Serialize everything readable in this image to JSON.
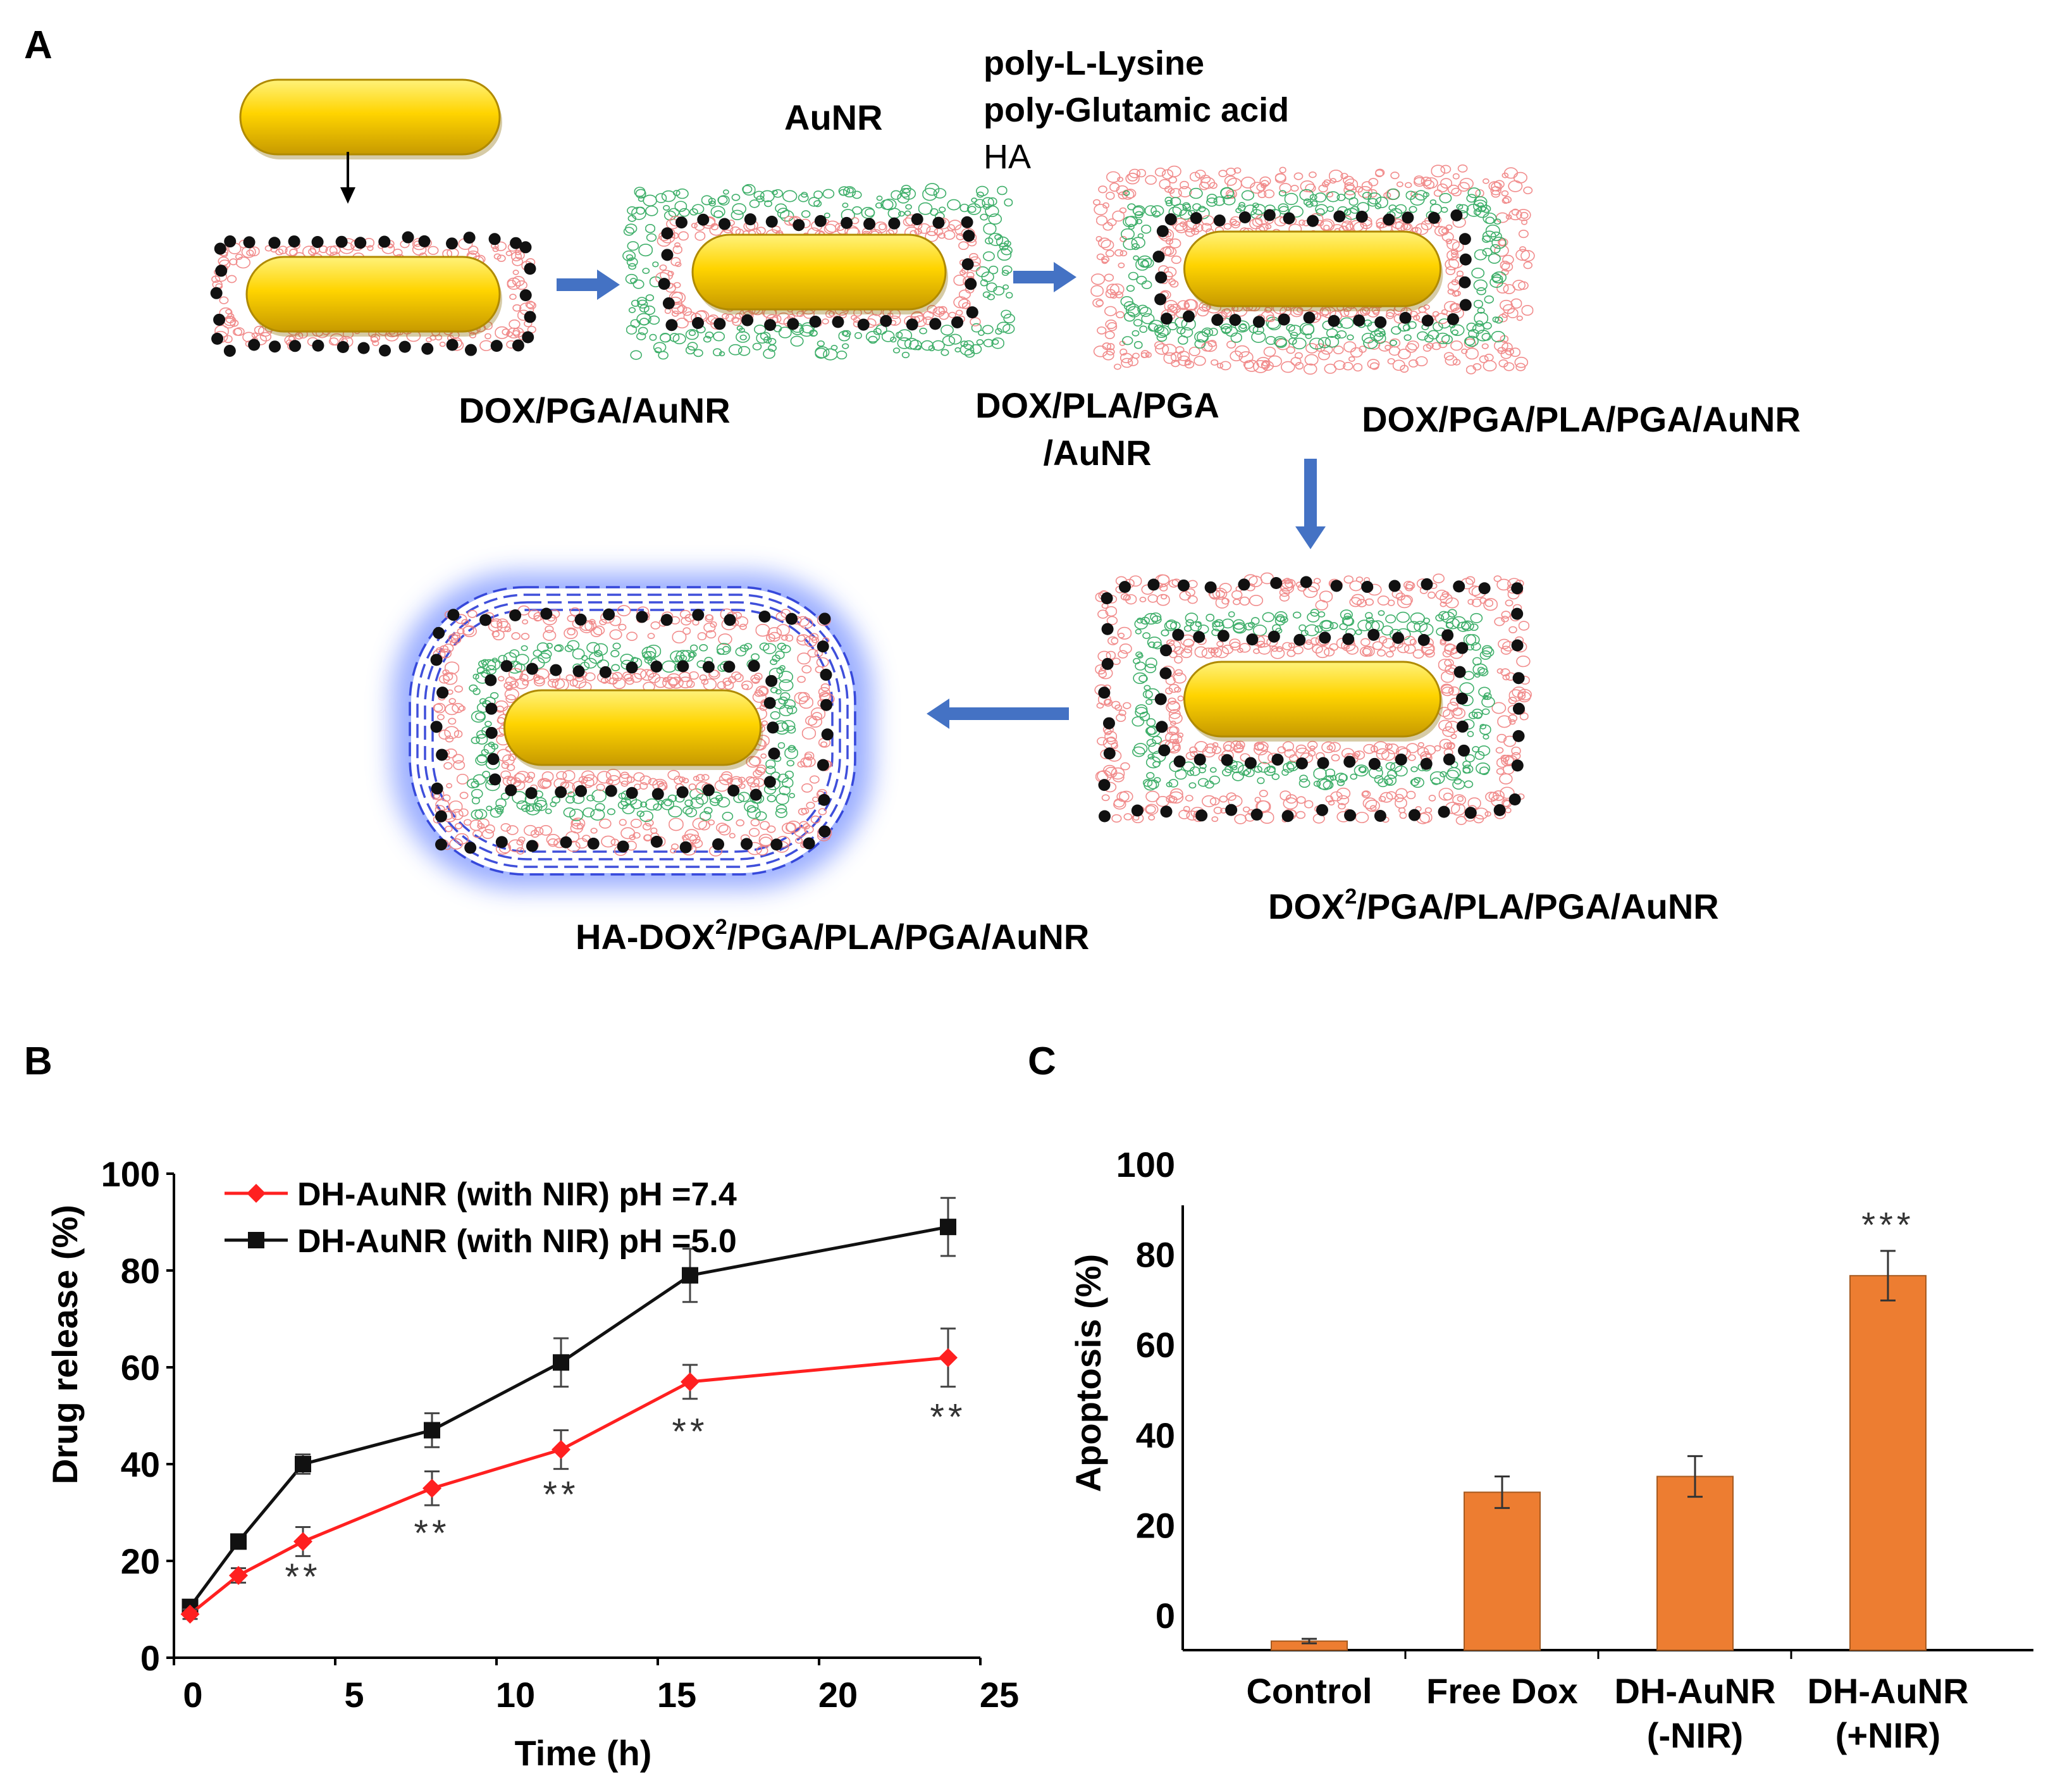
{
  "panel_labels": {
    "a": "A",
    "b": "B",
    "c": "C"
  },
  "schematic": {
    "aunr_label": "AuNR",
    "polymers": [
      "poly-L-Lysine",
      "poly-Glutamic acid",
      "HA"
    ],
    "stage1": "DOX/PGA/AuNR",
    "stage2": [
      "DOX/PLA/PGA",
      "/AuNR"
    ],
    "stage3": "DOX/PGA/PLA/PGA/AuNR",
    "stage4_prefix": "DOX",
    "stage4_sup": "2",
    "stage4_suffix": "/PGA/PLA/PGA/AuNR",
    "stage5_prefix": "HA-DOX",
    "stage5_sup": "2",
    "stage5_suffix": "/PGA/PLA/PGA/AuNR",
    "colors": {
      "gold": "#ffd400",
      "pga": "#f08080",
      "pla": "#2aa65a",
      "ha": "#2a3cd6",
      "arrow": "#4472c4",
      "dox": "#111111"
    }
  },
  "chart_data": [
    {
      "type": "line",
      "xlabel": "Time (h)",
      "ylabel": "Drug release (%)",
      "xlim": [
        0,
        25
      ],
      "ylim": [
        0,
        100
      ],
      "xticks": [
        0,
        5,
        10,
        15,
        20,
        25
      ],
      "yticks": [
        0,
        20,
        40,
        60,
        80,
        100
      ],
      "legend_position": "top-left",
      "series": [
        {
          "name": "DH-AuNR (with NIR) pH =7.4",
          "color": "#ff2020",
          "marker": "diamond",
          "x": [
            0.5,
            2,
            4,
            8,
            12,
            16,
            24
          ],
          "y": [
            9,
            17,
            24,
            35,
            43,
            57,
            62
          ],
          "err": [
            1,
            1.5,
            3,
            3.5,
            4,
            3.5,
            6
          ]
        },
        {
          "name": "DH-AuNR (with NIR) pH =5.0",
          "color": "#111111",
          "marker": "square",
          "x": [
            0.5,
            2,
            4,
            8,
            12,
            16,
            24
          ],
          "y": [
            10.5,
            24,
            40,
            47,
            61,
            79,
            89
          ],
          "err": [
            1,
            1,
            2,
            3.5,
            5,
            5.5,
            6
          ]
        }
      ],
      "annotations": [
        {
          "x": 4,
          "y": 17,
          "text": "**"
        },
        {
          "x": 8,
          "y": 26,
          "text": "**"
        },
        {
          "x": 12,
          "y": 34,
          "text": "**"
        },
        {
          "x": 16,
          "y": 47,
          "text": "**"
        },
        {
          "x": 24,
          "y": 50,
          "text": "**"
        }
      ]
    },
    {
      "type": "bar",
      "ylabel": "Apoptosis (%)",
      "ylim": [
        0,
        100
      ],
      "yticks": [
        0,
        20,
        40,
        60,
        80,
        100
      ],
      "color": "#ed7d31",
      "categories": [
        [
          "Control"
        ],
        [
          "Free Dox"
        ],
        [
          "DH-AuNR",
          "(-NIR)"
        ],
        [
          "DH-AuNR",
          "(+NIR)"
        ]
      ],
      "values": [
        2,
        35,
        38.5,
        83
      ],
      "errors": [
        0.5,
        3.5,
        4.5,
        5.5
      ],
      "significance": [
        null,
        null,
        null,
        "***"
      ]
    }
  ]
}
